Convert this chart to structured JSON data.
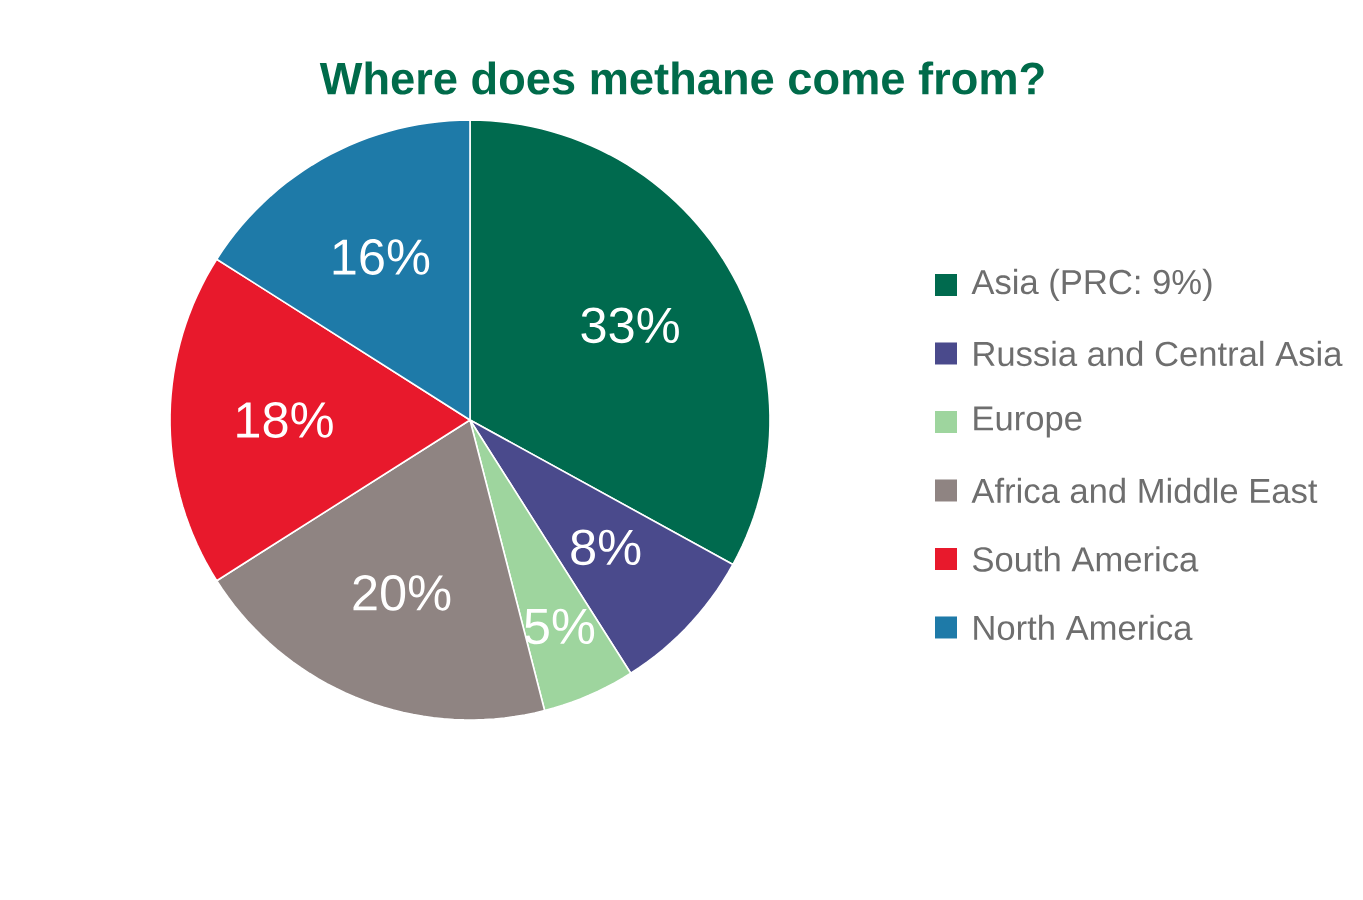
{
  "chart_data": {
    "type": "pie",
    "title": "Where does methane come from?",
    "categories": [
      "Asia (PRC: 9%)",
      "Russia and Central Asia",
      "Europe",
      "Africa and Middle East",
      "South America",
      "North America"
    ],
    "values": [
      33,
      8,
      5,
      20,
      18,
      16
    ],
    "colors": [
      "#006a4e",
      "#4a4a8c",
      "#9ed59e",
      "#8f8482",
      "#e8192c",
      "#1e7aa8"
    ],
    "value_labels": [
      "33%",
      "8%",
      "5%",
      "20%",
      "18%",
      "16%"
    ],
    "legend": "right"
  }
}
